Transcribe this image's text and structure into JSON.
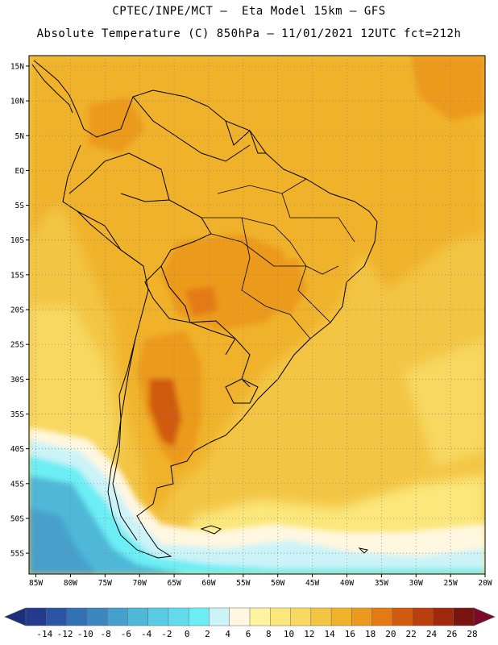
{
  "header": {
    "title_line1": "CPTEC/INPE/MCT –  Eta Model 15km – GFS",
    "title_line2": "Absolute Temperature (C) 850hPa – 11/01/2021 12UTC fct=212h"
  },
  "axes": {
    "lat_labels": [
      "15N",
      "10N",
      "5N",
      "EQ",
      "5S",
      "10S",
      "15S",
      "20S",
      "25S",
      "30S",
      "35S",
      "40S",
      "45S",
      "50S",
      "55S"
    ],
    "lat_values": [
      15,
      10,
      5,
      0,
      -5,
      -10,
      -15,
      -20,
      -25,
      -30,
      -35,
      -40,
      -45,
      -50,
      -55
    ],
    "lon_labels": [
      "85W",
      "80W",
      "75W",
      "70W",
      "65W",
      "60W",
      "55W",
      "50W",
      "45W",
      "40W",
      "35W",
      "30W",
      "25W",
      "20W"
    ],
    "lon_values": [
      -85,
      -80,
      -75,
      -70,
      -65,
      -60,
      -55,
      -50,
      -45,
      -40,
      -35,
      -30,
      -25,
      -20
    ],
    "lat_range": [
      -58,
      16.5
    ],
    "lon_range": [
      -86,
      -20
    ]
  },
  "colorbar": {
    "unit": "C",
    "labels": [
      "-14",
      "-12",
      "-10",
      "-8",
      "-6",
      "-4",
      "-2",
      "0",
      "2",
      "4",
      "6",
      "8",
      "10",
      "12",
      "14",
      "16",
      "18",
      "20",
      "22",
      "24",
      "26",
      "28"
    ],
    "low_color": "#1c2f7a",
    "high_color": "#7a0a2a",
    "colors": [
      "#243a8c",
      "#2b55a4",
      "#3470b4",
      "#3d87c0",
      "#46a0cc",
      "#4fb8d8",
      "#59cce4",
      "#62dcec",
      "#6ceef4",
      "#cbf3f8",
      "#fff7e0",
      "#fdf3a0",
      "#fbe77c",
      "#f8d860",
      "#f3c544",
      "#f0b22a",
      "#ec9a1e",
      "#e47a14",
      "#d05a0e",
      "#b9400c",
      "#a0280c",
      "#7a1410"
    ]
  },
  "map_colors": {
    "ocean_base": "#f3c544",
    "land_base": "#f0b22a",
    "warm_core": "#ec9a1e",
    "hot_core": "#e47a14",
    "hottest": "#d05a0e",
    "mild": "#f8d860",
    "cool": "#fbe77c",
    "pale": "#fff7e0",
    "cold1": "#cbf3f8",
    "cold2": "#6ceef4",
    "cold3": "#59cce4",
    "cold4": "#4fb8d8",
    "cold5": "#46a0cc",
    "border": "#000000"
  }
}
